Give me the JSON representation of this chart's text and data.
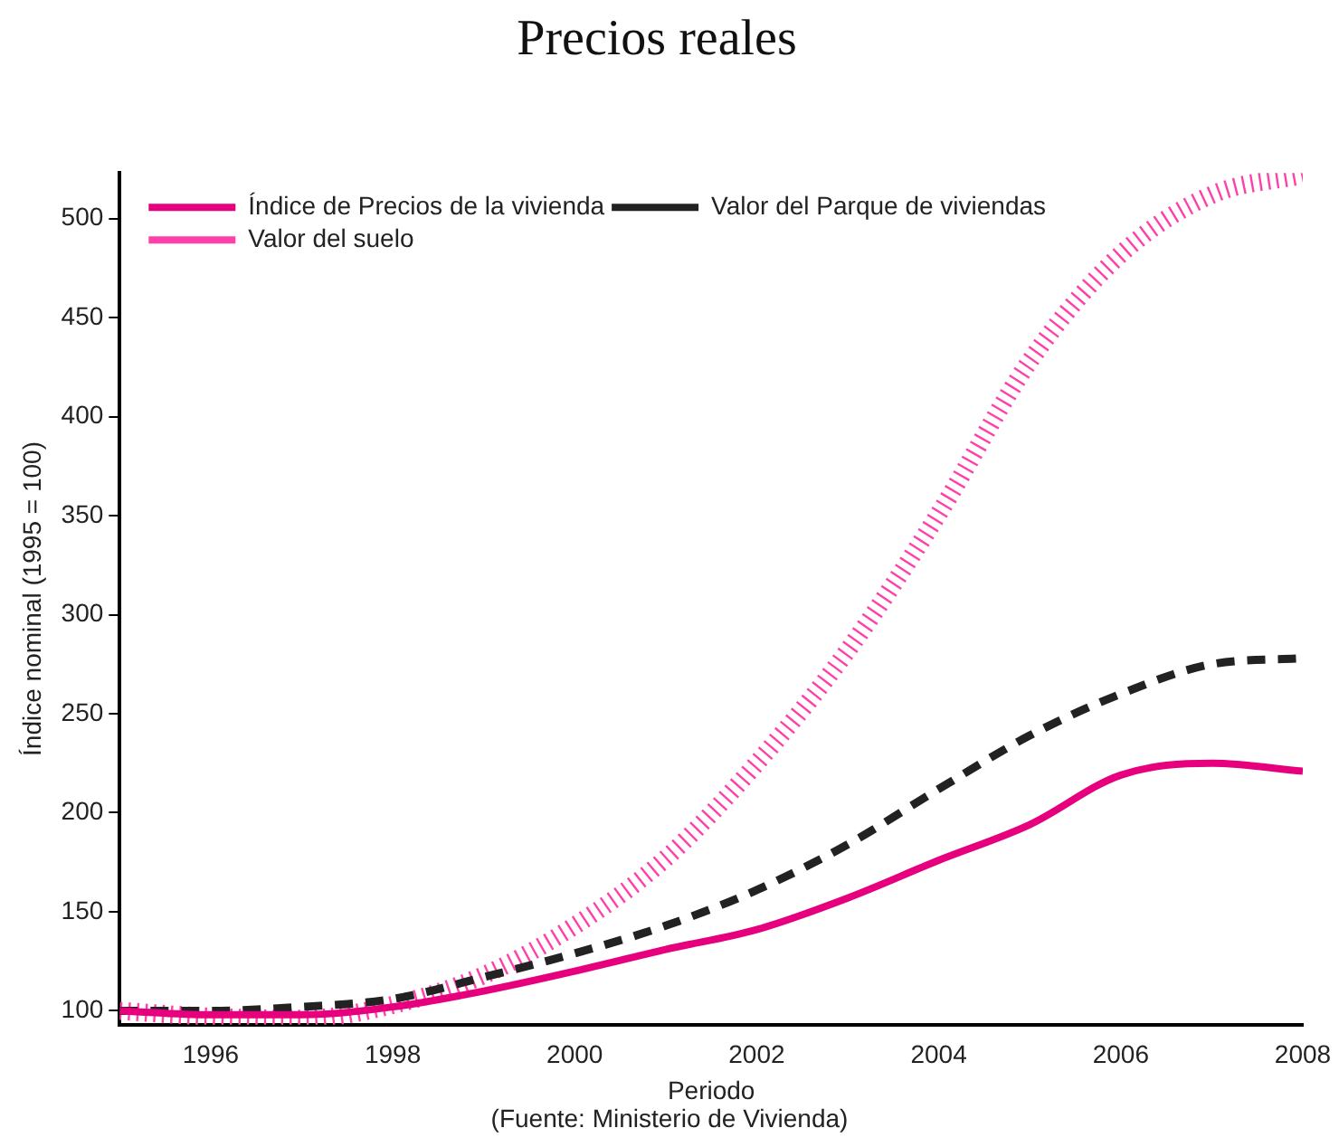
{
  "chart_data": {
    "type": "line",
    "title": "Precios reales",
    "xlabel": "Periodo",
    "ylabel": "Índice nominal (1995 = 100)",
    "annotations": [
      "(Fuente: Ministerio de Vivienda)"
    ],
    "x": [
      1995,
      1996,
      1997,
      1998,
      1999,
      2000,
      2001,
      2002,
      2003,
      2004,
      2005,
      2006,
      2007,
      2008
    ],
    "xlim": [
      1995,
      2008
    ],
    "xticks": [
      1996,
      1998,
      2000,
      2002,
      2004,
      2006,
      2008
    ],
    "ylim": [
      93,
      523
    ],
    "yticks": [
      100,
      150,
      200,
      250,
      300,
      350,
      400,
      450,
      500
    ],
    "grid": false,
    "legend": "top left",
    "marker": "none",
    "series": [
      {
        "name": "Índice de Precios de la vivienda",
        "color": "#e6007e",
        "line_style": "solid",
        "values": [
          100,
          98,
          98,
          102,
          110,
          120,
          131,
          141,
          157,
          176,
          194,
          219,
          225,
          221
        ]
      },
      {
        "name": "Valor del Parque de viviendas",
        "color": "#222222",
        "line_style": "dashed",
        "values": [
          100,
          100,
          102,
          106,
          117,
          129,
          143,
          161,
          184,
          212,
          239,
          260,
          275,
          278
        ]
      },
      {
        "name": "Valor del suelo",
        "color": "#ff40a8",
        "line_style": "dotted",
        "values": [
          100,
          97,
          96,
          103,
          118,
          143,
          177,
          225,
          282,
          351,
          428,
          482,
          512,
          522
        ]
      }
    ]
  }
}
